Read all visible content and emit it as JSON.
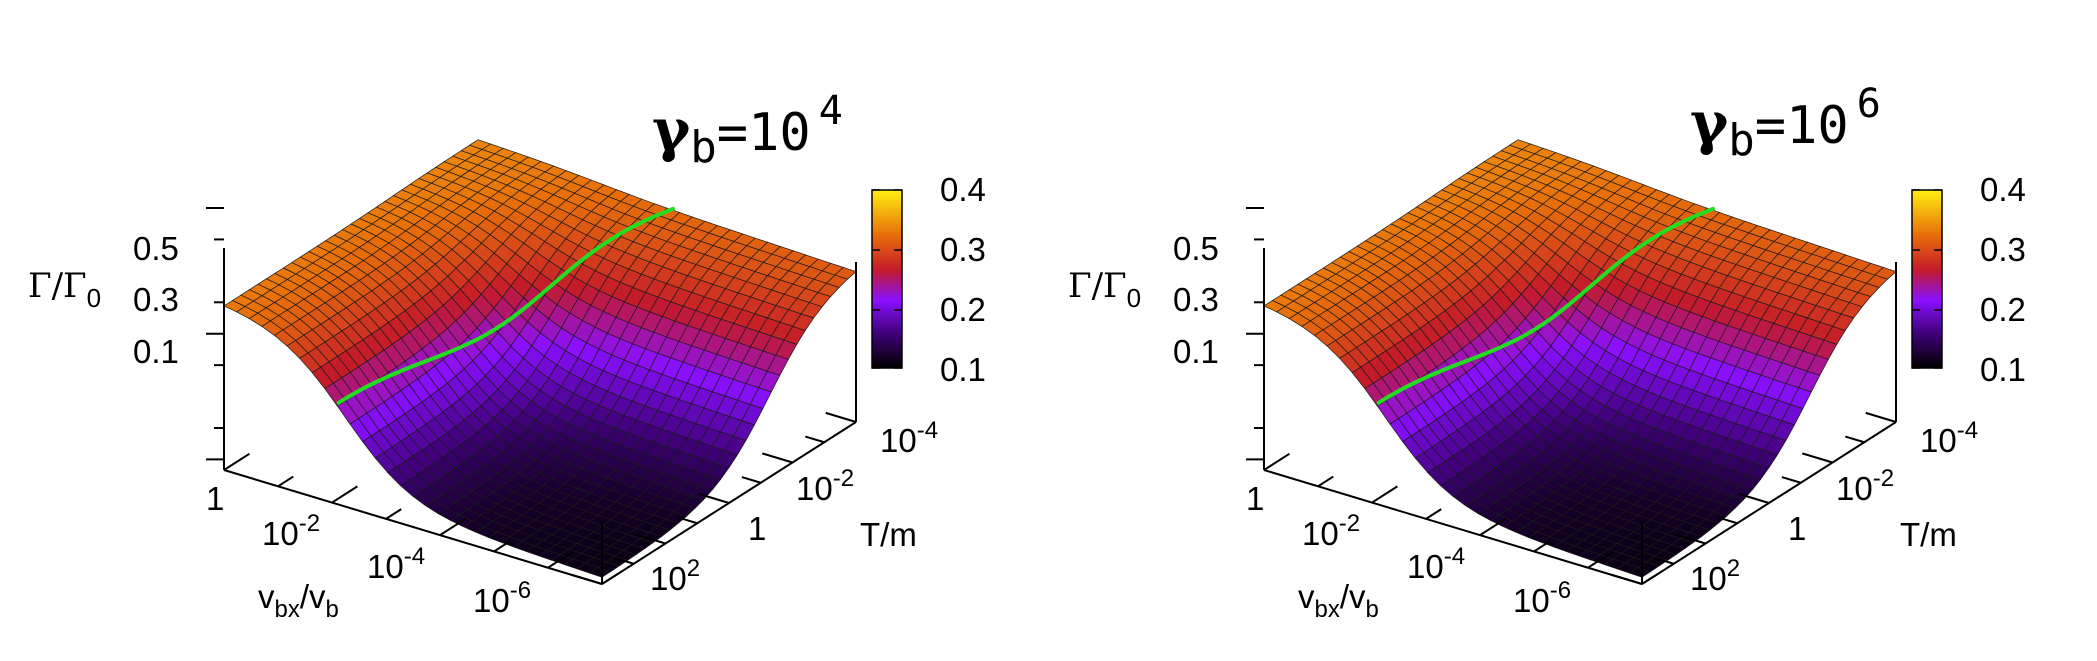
{
  "panels": [
    {
      "title": {
        "symbol": "γ",
        "sub": "b",
        "eq": "=10",
        "exp": "4"
      },
      "chart_data": {
        "type": "surface",
        "x": {
          "label_main": "v",
          "label_sub1": "bx",
          "label_mid": "/v",
          "label_sub2": "b",
          "scale": "log",
          "range": [
            1,
            1e-07
          ],
          "ticks": [
            {
              "base": "1",
              "exp": ""
            },
            {
              "base": "10",
              "exp": "-2"
            },
            {
              "base": "10",
              "exp": "-4"
            },
            {
              "base": "10",
              "exp": "-6"
            }
          ]
        },
        "y": {
          "label": "T/m",
          "scale": "log",
          "range": [
            1000,
            1e-05
          ],
          "ticks": [
            {
              "base": "10",
              "exp": "2"
            },
            {
              "base": "1",
              "exp": ""
            },
            {
              "base": "10",
              "exp": "-2"
            },
            {
              "base": "10",
              "exp": "-4"
            }
          ]
        },
        "z": {
          "label_main": "Γ/Γ",
          "label_sub": "0",
          "ticks": [
            "0.5",
            "0.3",
            "0.1"
          ],
          "range": [
            0.08,
            0.5
          ]
        },
        "colorbar": {
          "ticks": [
            "0.4",
            "0.3",
            "0.2",
            "0.1"
          ],
          "range": [
            0.08,
            0.42
          ]
        },
        "surface_levels": {
          "high": 0.33,
          "low": 0.09,
          "edge_high": 0.36
        },
        "green_curve_color": "#22dd22"
      }
    },
    {
      "title": {
        "symbol": "γ",
        "sub": "b",
        "eq": "=10",
        "exp": "6"
      },
      "chart_data": {
        "type": "surface",
        "x": {
          "label_main": "v",
          "label_sub1": "bx",
          "label_mid": "/v",
          "label_sub2": "b",
          "scale": "log",
          "range": [
            1,
            1e-07
          ],
          "ticks": [
            {
              "base": "1",
              "exp": ""
            },
            {
              "base": "10",
              "exp": "-2"
            },
            {
              "base": "10",
              "exp": "-4"
            },
            {
              "base": "10",
              "exp": "-6"
            }
          ]
        },
        "y": {
          "label": "T/m",
          "scale": "log",
          "range": [
            1000,
            1e-05
          ],
          "ticks": [
            {
              "base": "10",
              "exp": "2"
            },
            {
              "base": "1",
              "exp": ""
            },
            {
              "base": "10",
              "exp": "-2"
            },
            {
              "base": "10",
              "exp": "-4"
            }
          ]
        },
        "z": {
          "label_main": "Γ/Γ",
          "label_sub": "0",
          "ticks": [
            "0.5",
            "0.3",
            "0.1"
          ],
          "range": [
            0.08,
            0.5
          ]
        },
        "colorbar": {
          "ticks": [
            "0.4",
            "0.3",
            "0.2",
            "0.1"
          ],
          "range": [
            0.08,
            0.42
          ]
        },
        "surface_levels": {
          "high": 0.33,
          "low": 0.09,
          "edge_high": 0.36
        },
        "green_curve_color": "#22dd22"
      }
    }
  ]
}
